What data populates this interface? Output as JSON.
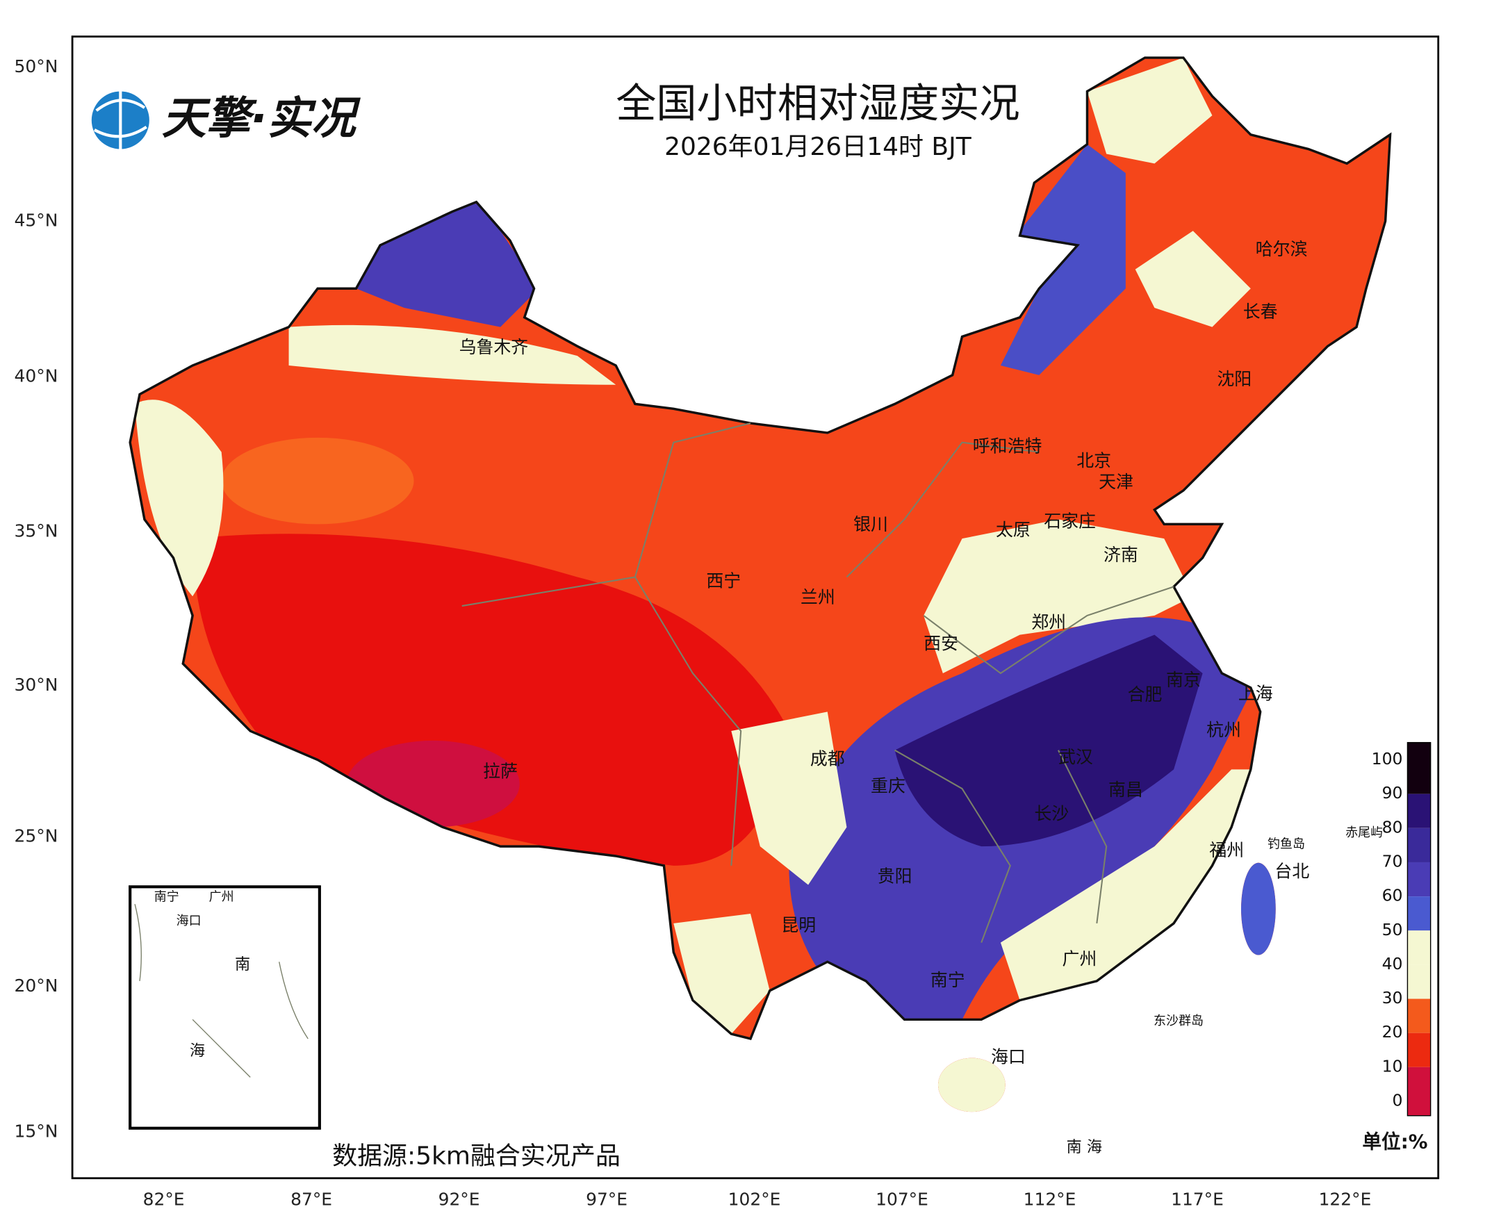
{
  "header": {
    "logo": "天擎·实况",
    "title": "全国小时相对湿度实况",
    "subtitle": "2026年01月26日14时 BJT"
  },
  "map": {
    "lat_labels": [
      "50°N",
      "45°N",
      "40°N",
      "35°N",
      "30°N",
      "25°N",
      "20°N",
      "15°N"
    ],
    "lon_labels": [
      "82°E",
      "87°E",
      "92°E",
      "97°E",
      "102°E",
      "107°E",
      "112°E",
      "117°E",
      "122°E"
    ],
    "cities": [
      "乌鲁木齐",
      "哈尔滨",
      "长春",
      "沈阳",
      "呼和浩特",
      "北京",
      "天津",
      "银川",
      "太原",
      "石家庄",
      "济南",
      "西宁",
      "兰州",
      "郑州",
      "西安",
      "南京",
      "上海",
      "合肥",
      "杭州",
      "成都",
      "武汉",
      "拉萨",
      "重庆",
      "南昌",
      "长沙",
      "福州",
      "台北",
      "贵阳",
      "昆明",
      "广州",
      "南宁",
      "海口"
    ],
    "places": [
      "钓鱼岛",
      "赤尾屿",
      "东沙群岛",
      "南 海"
    ],
    "inset_labels": [
      "南宁",
      "广州",
      "海口",
      "南",
      "海"
    ]
  },
  "legend": {
    "ticks": [
      100,
      90,
      80,
      70,
      60,
      50,
      40,
      30,
      20,
      10,
      0
    ],
    "colors": [
      "#12000f",
      "#2a1275",
      "#3a2a9a",
      "#4a3cb5",
      "#4a5ad0",
      "#f5f7d2",
      "#f5f7d2",
      "#f45a1c",
      "#ec2a10",
      "#d0103c"
    ],
    "unit": "单位:%"
  },
  "footer": {
    "source": "数据源:5km融合实况产品"
  }
}
